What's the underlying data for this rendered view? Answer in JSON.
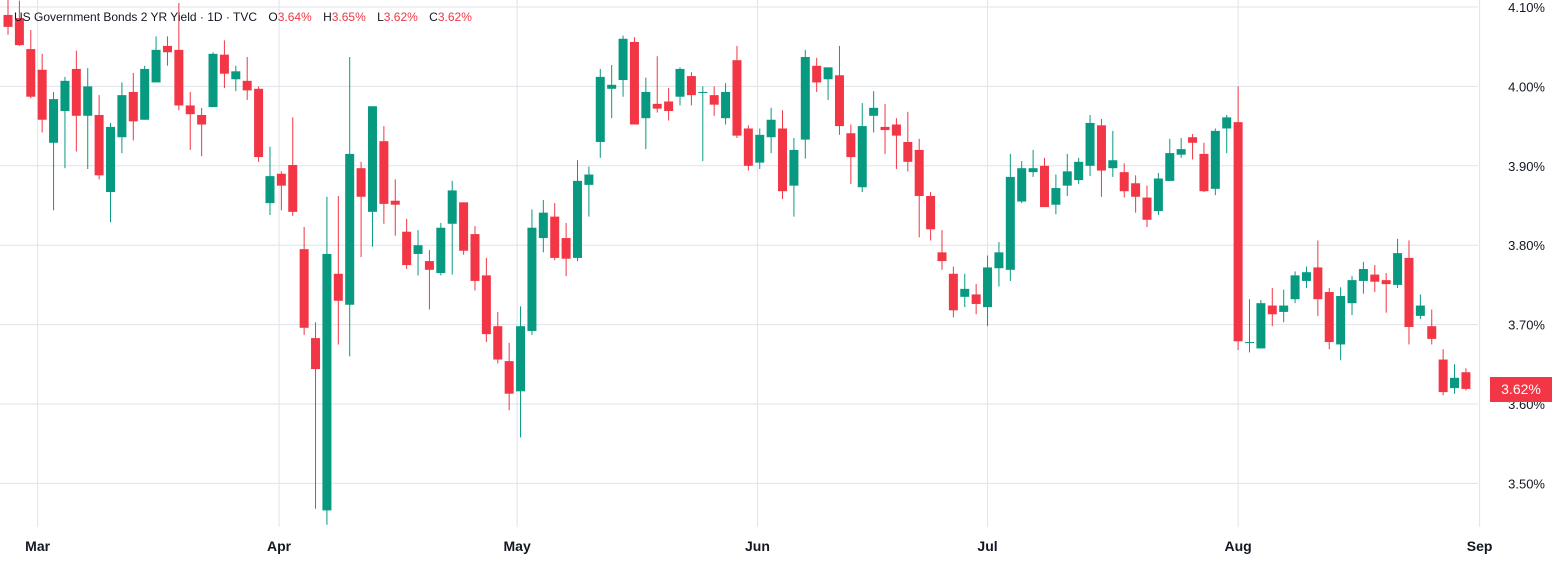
{
  "header": {
    "symbol": "US Government Bonds 2 YR Yield · 1D · TVC",
    "open_label": "O",
    "open": "3.64%",
    "high_label": "H",
    "high": "3.65%",
    "low_label": "L",
    "low": "3.62%",
    "close_label": "C",
    "close": "3.62%"
  },
  "last_price_label": "3.62%",
  "colors": {
    "up": "#089981",
    "down": "#F23645",
    "grid": "#e0e3eb"
  },
  "chart_data": {
    "type": "candlestick",
    "title": "US Government Bonds 2 YR Yield · 1D · TVC",
    "ylim": [
      3.445,
      4.109
    ],
    "y_scale_position": "right",
    "grid": true,
    "y_ticks": [
      {
        "value": 4.1,
        "label": "4.10%"
      },
      {
        "value": 4.0,
        "label": "4.00%"
      },
      {
        "value": 3.9,
        "label": "3.90%"
      },
      {
        "value": 3.8,
        "label": "3.80%"
      },
      {
        "value": 3.7,
        "label": "3.70%"
      },
      {
        "value": 3.6,
        "label": "3.60%"
      },
      {
        "value": 3.5,
        "label": "3.50%"
      }
    ],
    "x_ticks": [
      {
        "bar": 2.6,
        "label": "Mar"
      },
      {
        "bar": 23.8,
        "label": "Apr"
      },
      {
        "bar": 44.7,
        "label": "May"
      },
      {
        "bar": 65.8,
        "label": "Jun"
      },
      {
        "bar": 86.0,
        "label": "Jul"
      },
      {
        "bar": 108.0,
        "label": "Aug"
      },
      {
        "bar": 129.2,
        "label": "Sep"
      }
    ],
    "ohlc_fields": [
      "open",
      "high",
      "low",
      "close"
    ],
    "ohlc": [
      [
        4.09,
        4.11,
        4.065,
        4.075
      ],
      [
        4.086,
        4.108,
        4.051,
        4.052
      ],
      [
        4.047,
        4.071,
        3.985,
        3.987
      ],
      [
        4.021,
        4.041,
        3.942,
        3.958
      ],
      [
        3.929,
        3.993,
        3.844,
        3.984
      ],
      [
        3.969,
        4.012,
        3.897,
        4.007
      ],
      [
        4.022,
        4.045,
        3.918,
        3.963
      ],
      [
        3.963,
        4.023,
        3.896,
        4.0
      ],
      [
        3.964,
        3.989,
        3.883,
        3.888
      ],
      [
        3.867,
        3.954,
        3.829,
        3.949
      ],
      [
        3.936,
        4.005,
        3.916,
        3.989
      ],
      [
        3.993,
        4.017,
        3.932,
        3.956
      ],
      [
        3.958,
        4.026,
        3.958,
        4.022
      ],
      [
        4.005,
        4.063,
        4.005,
        4.046
      ],
      [
        4.051,
        4.063,
        4.026,
        4.043
      ],
      [
        4.046,
        4.105,
        3.97,
        3.976
      ],
      [
        3.976,
        3.993,
        3.92,
        3.965
      ],
      [
        3.964,
        3.973,
        3.912,
        3.952
      ],
      [
        3.974,
        4.043,
        3.974,
        4.041
      ],
      [
        4.04,
        4.058,
        3.998,
        4.016
      ],
      [
        4.009,
        4.026,
        3.994,
        4.019
      ],
      [
        4.007,
        4.037,
        3.983,
        3.995
      ],
      [
        3.997,
        4.0,
        3.905,
        3.911
      ],
      [
        3.853,
        3.924,
        3.838,
        3.887
      ],
      [
        3.89,
        3.893,
        3.844,
        3.875
      ],
      [
        3.901,
        3.961,
        3.837,
        3.842
      ],
      [
        3.795,
        3.823,
        3.687,
        3.696
      ],
      [
        3.683,
        3.703,
        3.468,
        3.644
      ],
      [
        3.466,
        3.861,
        3.448,
        3.789
      ],
      [
        3.764,
        3.862,
        3.675,
        3.73
      ],
      [
        3.725,
        4.037,
        3.66,
        3.915
      ],
      [
        3.897,
        3.905,
        3.785,
        3.861
      ],
      [
        3.842,
        3.975,
        3.798,
        3.975
      ],
      [
        3.931,
        3.95,
        3.827,
        3.852
      ],
      [
        3.856,
        3.883,
        3.812,
        3.851
      ],
      [
        3.817,
        3.833,
        3.77,
        3.775
      ],
      [
        3.789,
        3.819,
        3.762,
        3.8
      ],
      [
        3.78,
        3.794,
        3.719,
        3.769
      ],
      [
        3.765,
        3.828,
        3.762,
        3.822
      ],
      [
        3.827,
        3.881,
        3.763,
        3.869
      ],
      [
        3.854,
        3.854,
        3.788,
        3.793
      ],
      [
        3.814,
        3.824,
        3.743,
        3.755
      ],
      [
        3.762,
        3.784,
        3.678,
        3.688
      ],
      [
        3.698,
        3.716,
        3.651,
        3.656
      ],
      [
        3.654,
        3.677,
        3.592,
        3.613
      ],
      [
        3.616,
        3.723,
        3.558,
        3.698
      ],
      [
        3.692,
        3.845,
        3.687,
        3.822
      ],
      [
        3.809,
        3.857,
        3.791,
        3.841
      ],
      [
        3.836,
        3.853,
        3.781,
        3.784
      ],
      [
        3.809,
        3.828,
        3.761,
        3.783
      ],
      [
        3.784,
        3.907,
        3.78,
        3.881
      ],
      [
        3.876,
        3.899,
        3.836,
        3.889
      ],
      [
        3.93,
        4.022,
        3.91,
        4.012
      ],
      [
        3.997,
        4.027,
        3.96,
        4.002
      ],
      [
        4.008,
        4.064,
        3.987,
        4.06
      ],
      [
        4.056,
        4.062,
        3.952,
        3.952
      ],
      [
        3.96,
        4.011,
        3.921,
        3.993
      ],
      [
        3.978,
        4.038,
        3.967,
        3.972
      ],
      [
        3.981,
        3.998,
        3.957,
        3.969
      ],
      [
        3.987,
        4.024,
        3.976,
        4.022
      ],
      [
        4.013,
        4.018,
        3.976,
        3.989
      ],
      [
        3.992,
        4.0,
        3.906,
        3.993
      ],
      [
        3.989,
        4.0,
        3.963,
        3.977
      ],
      [
        3.96,
        4.004,
        3.952,
        3.993
      ],
      [
        4.033,
        4.051,
        3.935,
        3.938
      ],
      [
        3.947,
        3.951,
        3.894,
        3.9
      ],
      [
        3.904,
        3.947,
        3.896,
        3.939
      ],
      [
        3.936,
        3.973,
        3.916,
        3.958
      ],
      [
        3.947,
        3.97,
        3.858,
        3.868
      ],
      [
        3.875,
        3.935,
        3.836,
        3.92
      ],
      [
        3.933,
        4.046,
        3.909,
        4.037
      ],
      [
        4.026,
        4.036,
        3.993,
        4.005
      ],
      [
        4.009,
        4.024,
        3.983,
        4.024
      ],
      [
        4.014,
        4.051,
        3.939,
        3.95
      ],
      [
        3.941,
        3.952,
        3.877,
        3.911
      ],
      [
        3.873,
        3.979,
        3.867,
        3.95
      ],
      [
        3.963,
        3.994,
        3.942,
        3.973
      ],
      [
        3.949,
        3.978,
        3.915,
        3.945
      ],
      [
        3.952,
        3.96,
        3.896,
        3.938
      ],
      [
        3.93,
        3.968,
        3.893,
        3.905
      ],
      [
        3.92,
        3.934,
        3.81,
        3.862
      ],
      [
        3.862,
        3.867,
        3.806,
        3.82
      ],
      [
        3.791,
        3.819,
        3.769,
        3.78
      ],
      [
        3.764,
        3.773,
        3.709,
        3.718
      ],
      [
        3.735,
        3.764,
        3.722,
        3.745
      ],
      [
        3.738,
        3.751,
        3.713,
        3.726
      ],
      [
        3.722,
        3.787,
        3.698,
        3.772
      ],
      [
        3.771,
        3.804,
        3.748,
        3.791
      ],
      [
        3.769,
        3.915,
        3.755,
        3.886
      ],
      [
        3.855,
        3.906,
        3.853,
        3.897
      ],
      [
        3.892,
        3.92,
        3.886,
        3.897
      ],
      [
        3.9,
        3.91,
        3.848,
        3.848
      ],
      [
        3.851,
        3.889,
        3.839,
        3.872
      ],
      [
        3.875,
        3.915,
        3.862,
        3.893
      ],
      [
        3.882,
        3.91,
        3.877,
        3.905
      ],
      [
        3.9,
        3.964,
        3.887,
        3.954
      ],
      [
        3.951,
        3.959,
        3.861,
        3.894
      ],
      [
        3.897,
        3.944,
        3.886,
        3.907
      ],
      [
        3.892,
        3.903,
        3.86,
        3.868
      ],
      [
        3.878,
        3.888,
        3.841,
        3.861
      ],
      [
        3.86,
        3.875,
        3.823,
        3.832
      ],
      [
        3.843,
        3.891,
        3.838,
        3.884
      ],
      [
        3.881,
        3.934,
        3.881,
        3.916
      ],
      [
        3.914,
        3.935,
        3.91,
        3.921
      ],
      [
        3.936,
        3.94,
        3.908,
        3.929
      ],
      [
        3.915,
        3.929,
        3.867,
        3.868
      ],
      [
        3.871,
        3.947,
        3.863,
        3.944
      ],
      [
        3.947,
        3.964,
        3.916,
        3.961
      ],
      [
        3.955,
        4.0,
        3.668,
        3.679
      ],
      [
        3.677,
        3.732,
        3.665,
        3.678
      ],
      [
        3.67,
        3.731,
        3.67,
        3.727
      ],
      [
        3.724,
        3.746,
        3.698,
        3.713
      ],
      [
        3.716,
        3.744,
        3.703,
        3.724
      ],
      [
        3.732,
        3.767,
        3.727,
        3.762
      ],
      [
        3.755,
        3.773,
        3.746,
        3.766
      ],
      [
        3.772,
        3.806,
        3.711,
        3.732
      ],
      [
        3.741,
        3.746,
        3.669,
        3.678
      ],
      [
        3.675,
        3.747,
        3.655,
        3.736
      ],
      [
        3.727,
        3.761,
        3.712,
        3.756
      ],
      [
        3.755,
        3.779,
        3.739,
        3.77
      ],
      [
        3.763,
        3.775,
        3.741,
        3.754
      ],
      [
        3.756,
        3.765,
        3.715,
        3.751
      ],
      [
        3.75,
        3.808,
        3.746,
        3.79
      ],
      [
        3.784,
        3.806,
        3.675,
        3.697
      ],
      [
        3.711,
        3.738,
        3.707,
        3.724
      ],
      [
        3.698,
        3.719,
        3.675,
        3.682
      ],
      [
        3.656,
        3.669,
        3.611,
        3.615
      ],
      [
        3.62,
        3.65,
        3.613,
        3.633
      ],
      [
        3.64,
        3.645,
        3.617,
        3.619
      ]
    ]
  }
}
